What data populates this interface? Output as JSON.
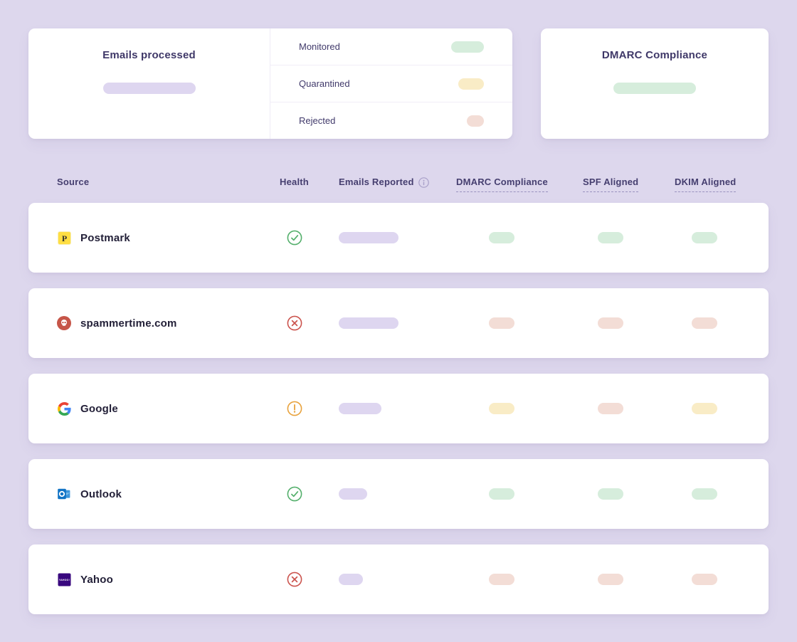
{
  "colors": {
    "background": "#ddd7ed",
    "card": "#ffffff",
    "pill_purple": "#ded6f0",
    "pill_green": "#d6eddc",
    "pill_yellow": "#f9ecc6",
    "pill_red": "#f3ddd6",
    "health_ok_green": "#53af6b",
    "health_error_red": "#cb534d",
    "health_warning_orange": "#e8a23c",
    "heading_text": "#3f3868",
    "row_text": "#232038"
  },
  "summary": {
    "emails_processed_title": "Emails processed",
    "dmarc_compliance_title": "DMARC Compliance",
    "emails_processed_pill_width": 130,
    "dmarc_compliance_pill_width": 116,
    "dmarc_compliance_pill_status": "green",
    "legend": [
      {
        "label": "Monitored",
        "status": "green",
        "pill_width": 46
      },
      {
        "label": "Quarantined",
        "status": "yellow",
        "pill_width": 36
      },
      {
        "label": "Rejected",
        "status": "red",
        "pill_width": 24
      }
    ]
  },
  "table": {
    "columns": {
      "source": "Source",
      "health": "Health",
      "emails_reported": "Emails Reported",
      "dmarc": "DMARC Compliance",
      "spf": "SPF Aligned",
      "dkim": "DKIM Aligned"
    },
    "rows": [
      {
        "source": "Postmark",
        "icon": "postmark-logo",
        "health": "healthy",
        "reported_pill_width": 84,
        "reported_status": "purple",
        "dmarc": "green",
        "spf": "green",
        "dkim": "green"
      },
      {
        "source": "spammertime.com",
        "icon": "spam-skull-badge",
        "health": "unhealthy",
        "reported_pill_width": 84,
        "reported_status": "purple",
        "dmarc": "red",
        "spf": "red",
        "dkim": "red"
      },
      {
        "source": "Google",
        "icon": "google-logo",
        "health": "warning",
        "reported_pill_width": 60,
        "reported_status": "purple",
        "dmarc": "yellow",
        "spf": "red",
        "dkim": "yellow"
      },
      {
        "source": "Outlook",
        "icon": "outlook-logo",
        "health": "healthy",
        "reported_pill_width": 40,
        "reported_status": "purple",
        "dmarc": "green",
        "spf": "green",
        "dkim": "green"
      },
      {
        "source": "Yahoo",
        "icon": "yahoo-logo",
        "health": "unhealthy",
        "reported_pill_width": 34,
        "reported_status": "purple",
        "dmarc": "red",
        "spf": "red",
        "dkim": "red"
      }
    ]
  }
}
